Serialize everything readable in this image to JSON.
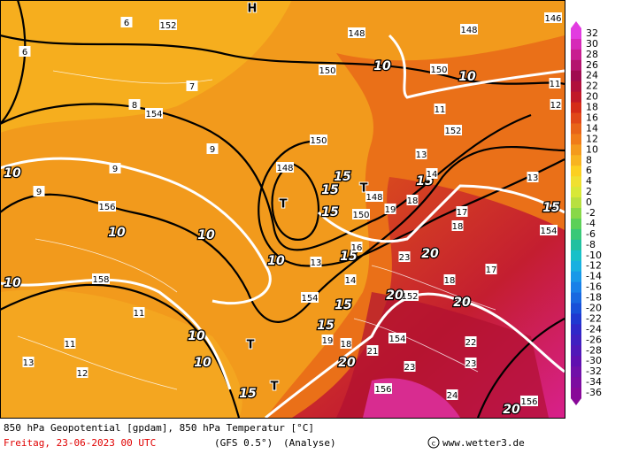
{
  "colorbar": {
    "ticks": [
      32,
      30,
      28,
      26,
      24,
      22,
      20,
      18,
      16,
      14,
      12,
      10,
      8,
      6,
      4,
      2,
      0,
      -2,
      -4,
      -6,
      -8,
      -10,
      -12,
      -14,
      -16,
      -18,
      -20,
      -22,
      -24,
      -26,
      -28,
      -30,
      -32,
      -34,
      -36
    ],
    "colors": [
      "#e23ce0",
      "#d62ab8",
      "#c81e90",
      "#b4146e",
      "#a00c50",
      "#b0103c",
      "#c01828",
      "#d42c18",
      "#e04818",
      "#e86418",
      "#f07c18",
      "#f49a1c",
      "#f8b420",
      "#fcd020",
      "#f0e030",
      "#d8e838",
      "#b8e040",
      "#88d848",
      "#5cd058",
      "#38c878",
      "#20c0a0",
      "#18c0c8",
      "#18b0e0",
      "#1898e8",
      "#1880e8",
      "#1868e0",
      "#1850d8",
      "#2038d0",
      "#3028c8",
      "#4020c0",
      "#5018b8",
      "#6010b0",
      "#7010a8",
      "#7c0ca0",
      "#880898"
    ]
  },
  "map": {
    "labels": [
      "146",
      "148",
      "148",
      "150",
      "150",
      "150",
      "152",
      "152",
      "154",
      "154",
      "156",
      "158",
      "148",
      "150",
      "148",
      "154",
      "152",
      "154",
      "156",
      "156",
      "10",
      "10",
      "10",
      "10",
      "10",
      "10",
      "10",
      "10",
      "10",
      "15",
      "15",
      "15",
      "15",
      "15",
      "15",
      "15",
      "15",
      "15",
      "20",
      "20",
      "20",
      "20",
      "20",
      "T",
      "T",
      "T",
      "T",
      "H",
      "6",
      "6",
      "7",
      "8",
      "9",
      "9",
      "9",
      "11",
      "11",
      "11",
      "11",
      "12",
      "12",
      "13",
      "13",
      "13",
      "13",
      "14",
      "14",
      "16",
      "17",
      "17",
      "18",
      "18",
      "18",
      "18",
      "19",
      "19",
      "21",
      "22",
      "23",
      "23",
      "23",
      "24"
    ]
  },
  "footer": {
    "line1": "850 hPa Geopotential [gpdam], 850 hPa Temperatur [°C]",
    "date": "Freitag, 23-06-2023  00 UTC",
    "model": "(GFS 0.5°)",
    "run": "(Analyse)",
    "site": "www.wetter3.de"
  }
}
